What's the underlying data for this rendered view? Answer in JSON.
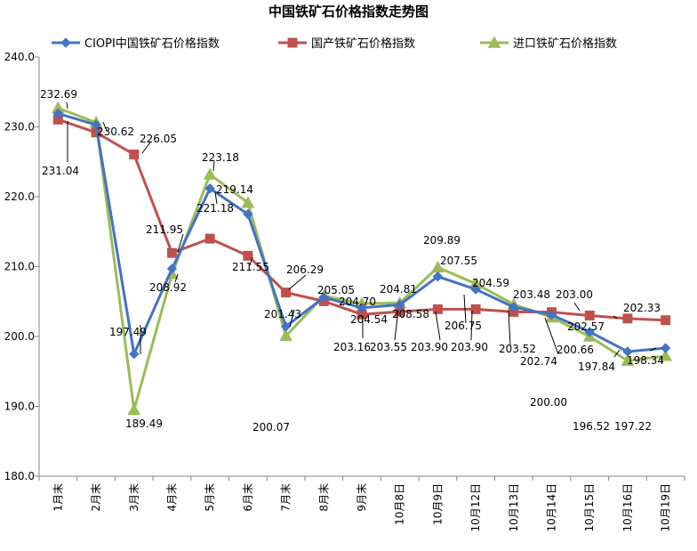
{
  "chart_data": {
    "type": "line",
    "title": "中国铁矿石价格指数走势图",
    "categories": [
      "1月末",
      "2月末",
      "3月末",
      "4月末",
      "5月末",
      "6月末",
      "7月末",
      "8月末",
      "9月末",
      "10月8日",
      "10月9日",
      "10月12日",
      "10月13日",
      "10月14日",
      "10月15日",
      "10月16日",
      "10月19日"
    ],
    "ylim": [
      180,
      240
    ],
    "ystep": 10,
    "yticks": [
      "180.0",
      "190.0",
      "200.0",
      "210.0",
      "220.0",
      "230.0",
      "240.0"
    ],
    "legend_position": "top",
    "grid": false,
    "series": [
      {
        "name": "CIOPI中国铁矿石价格指数",
        "color": "#4472C4",
        "marker": "diamond",
        "values": [
          231.9,
          230.3,
          197.49,
          209.7,
          221.18,
          217.5,
          201.43,
          205.6,
          204.1,
          204.54,
          208.58,
          206.75,
          204.2,
          203.1,
          200.66,
          197.84,
          198.34
        ]
      },
      {
        "name": "国产铁矿石价格指数",
        "color": "#C0504D",
        "marker": "square",
        "values": [
          231.04,
          229.2,
          226.05,
          211.95,
          214.0,
          211.55,
          206.29,
          205.05,
          203.16,
          203.55,
          203.9,
          203.9,
          203.52,
          203.48,
          203.0,
          202.57,
          202.33
        ]
      },
      {
        "name": "进口铁矿石价格指数",
        "color": "#9BBB59",
        "marker": "triangle",
        "values": [
          232.69,
          230.62,
          189.49,
          208.92,
          223.18,
          219.14,
          200.07,
          205.8,
          204.7,
          204.81,
          209.89,
          207.55,
          204.59,
          202.74,
          200.0,
          196.52,
          197.22
        ]
      }
    ],
    "data_labels": [
      {
        "text": "232.69",
        "series": 2,
        "index": 0
      },
      {
        "text": "230.62",
        "series": 2,
        "index": 1
      },
      {
        "text": "231.04",
        "series": 1,
        "index": 0
      },
      {
        "text": "226.05",
        "series": 1,
        "index": 2
      },
      {
        "text": "223.18",
        "series": 2,
        "index": 4
      },
      {
        "text": "219.14",
        "series": 2,
        "index": 5
      },
      {
        "text": "221.18",
        "series": 0,
        "index": 4
      },
      {
        "text": "211.95",
        "series": 1,
        "index": 3
      },
      {
        "text": "211.55",
        "series": 1,
        "index": 5
      },
      {
        "text": "206.29",
        "series": 1,
        "index": 6
      },
      {
        "text": "208.92",
        "series": 2,
        "index": 3
      },
      {
        "text": "201.43",
        "series": 0,
        "index": 6
      },
      {
        "text": "205.05",
        "series": 1,
        "index": 7
      },
      {
        "text": "209.89",
        "series": 2,
        "index": 10
      },
      {
        "text": "207.55",
        "series": 2,
        "index": 11
      },
      {
        "text": "204.81",
        "series": 2,
        "index": 9
      },
      {
        "text": "204.70",
        "series": 2,
        "index": 8
      },
      {
        "text": "204.59",
        "series": 2,
        "index": 12
      },
      {
        "text": "208.58",
        "series": 0,
        "index": 10
      },
      {
        "text": "206.75",
        "series": 0,
        "index": 11
      },
      {
        "text": "204.54",
        "series": 0,
        "index": 9
      },
      {
        "text": "203.48",
        "series": 1,
        "index": 13
      },
      {
        "text": "203.00",
        "series": 1,
        "index": 14
      },
      {
        "text": "202.57",
        "series": 1,
        "index": 15
      },
      {
        "text": "202.33",
        "series": 1,
        "index": 16
      },
      {
        "text": "197.49",
        "series": 0,
        "index": 2
      },
      {
        "text": "203.16",
        "series": 1,
        "index": 8
      },
      {
        "text": "203.55",
        "series": 1,
        "index": 9
      },
      {
        "text": "203.90",
        "series": 1,
        "index": 10
      },
      {
        "text": "203.90",
        "series": 1,
        "index": 11
      },
      {
        "text": "203.52",
        "series": 1,
        "index": 12
      },
      {
        "text": "202.74",
        "series": 2,
        "index": 13
      },
      {
        "text": "200.66",
        "series": 0,
        "index": 14
      },
      {
        "text": "197.84",
        "series": 0,
        "index": 15
      },
      {
        "text": "198.34",
        "series": 0,
        "index": 16
      },
      {
        "text": "189.49",
        "series": 2,
        "index": 2
      },
      {
        "text": "200.07",
        "series": 2,
        "index": 6
      },
      {
        "text": "200.00",
        "series": 2,
        "index": 14
      },
      {
        "text": "196.52",
        "series": 2,
        "index": 15
      },
      {
        "text": "197.22",
        "series": 2,
        "index": 16
      }
    ]
  }
}
